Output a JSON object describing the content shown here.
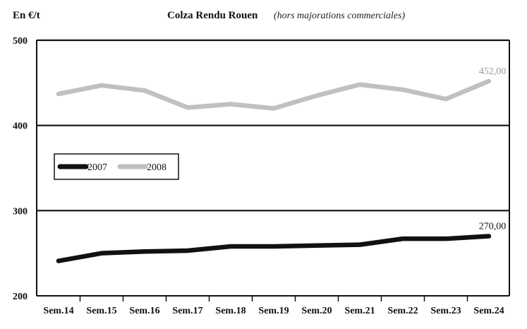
{
  "chart_data": {
    "type": "line",
    "title": "Colza Rendu Rouen",
    "subtitle": "(hors majorations commerciales)",
    "ylabel": "En €/t",
    "xlabel": "",
    "categories": [
      "Sem.14",
      "Sem.15",
      "Sem.16",
      "Sem.17",
      "Sem.18",
      "Sem.19",
      "Sem.20",
      "Sem.21",
      "Sem.22",
      "Sem.23",
      "Sem.24"
    ],
    "ylim": [
      200,
      500
    ],
    "yticks": [
      200,
      300,
      400,
      500
    ],
    "grid": true,
    "legend_position": "middle-left",
    "series": [
      {
        "name": "2007",
        "color": "#111111",
        "values": [
          241,
          250,
          252,
          253,
          258,
          258,
          259,
          260,
          267,
          267,
          270
        ],
        "end_label": "270,00"
      },
      {
        "name": "2008",
        "color": "#c0c0c0",
        "values": [
          437,
          447,
          441,
          421,
          425,
          420,
          435,
          448,
          442,
          431,
          452
        ],
        "end_label": "452,00"
      }
    ]
  }
}
